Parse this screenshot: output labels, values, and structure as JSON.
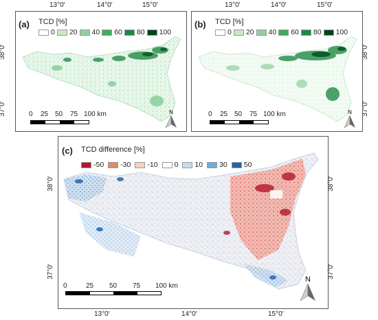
{
  "panels": {
    "a": {
      "label": "(a)",
      "legend_title": "TCD [%]",
      "legend": [
        {
          "label": "0",
          "color": "#ffffff"
        },
        {
          "label": "20",
          "color": "#c7e9c0"
        },
        {
          "label": "40",
          "color": "#8fd19e"
        },
        {
          "label": "60",
          "color": "#41ab5d"
        },
        {
          "label": "80",
          "color": "#1a8a45"
        },
        {
          "label": "100",
          "color": "#00441b"
        }
      ],
      "scale_labels": [
        "0",
        "25",
        "50",
        "75",
        "100 km"
      ],
      "north_label": "N"
    },
    "b": {
      "label": "(b)",
      "legend_title": "TCD [%]",
      "legend": [
        {
          "label": "0",
          "color": "#ffffff"
        },
        {
          "label": "20",
          "color": "#c7e9c0"
        },
        {
          "label": "40",
          "color": "#8fd19e"
        },
        {
          "label": "60",
          "color": "#41ab5d"
        },
        {
          "label": "80",
          "color": "#1a8a45"
        },
        {
          "label": "100",
          "color": "#00441b"
        }
      ],
      "scale_labels": [
        "0",
        "25",
        "50",
        "75",
        "100 km"
      ],
      "north_label": "N"
    },
    "c": {
      "label": "(c)",
      "legend_title": "TCD difference [%]",
      "legend": [
        {
          "label": "-50",
          "color": "#b2182b"
        },
        {
          "label": "-30",
          "color": "#e08a6e"
        },
        {
          "label": "-10",
          "color": "#f6d3bd"
        },
        {
          "label": "0",
          "color": "#ffffff"
        },
        {
          "label": "10",
          "color": "#c6dbef"
        },
        {
          "label": "30",
          "color": "#6baed6"
        },
        {
          "label": "50",
          "color": "#2166ac"
        }
      ],
      "scale_labels": [
        "0",
        "25",
        "50",
        "75",
        "100 km"
      ],
      "north_label": "N"
    }
  },
  "axes": {
    "top_a": [
      "13°0′",
      "14°0′",
      "15°0′"
    ],
    "top_b": [
      "13°0′",
      "14°0′",
      "15°0′"
    ],
    "bottom_c": [
      "13°0′",
      "14°0′",
      "15°0′"
    ],
    "left_a": [
      "38°0′",
      "37°0′"
    ],
    "right_b": [
      "38°0′",
      "37°0′"
    ],
    "left_c": [
      "38°0′",
      "37°0′"
    ],
    "right_c": [
      "38°0′",
      "37°0′"
    ]
  }
}
